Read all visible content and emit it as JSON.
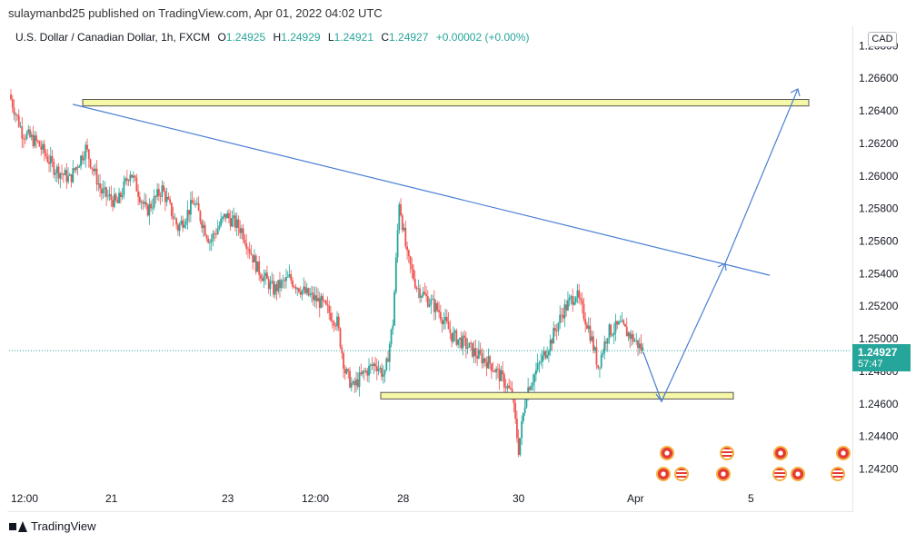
{
  "header": {
    "publisher_line": "sulaymanbd25 published on TradingView.com, Apr 01, 2022 04:02 UTC"
  },
  "legend": {
    "symbol": "U.S. Dollar / Canadian Dollar, 1h, FXCM",
    "open_label": "O",
    "open": "1.24925",
    "high_label": "H",
    "high": "1.24929",
    "low_label": "L",
    "low": "1.24921",
    "close_label": "C",
    "close": "1.24927",
    "change": "+0.00002 (+0.00%)"
  },
  "currency_badge": "CAD",
  "last_price": {
    "value": "1.24927",
    "countdown": "57:47"
  },
  "footer": {
    "brand": "TradingView"
  },
  "colors": {
    "up": "#26a69a",
    "down": "#ef5350",
    "drawing": "#4a7fd4",
    "zone_fill": "#f7f7a8",
    "zone_border": "#555555"
  },
  "chart_data": {
    "type": "candlestick",
    "title": "U.S. Dollar / Canadian Dollar, 1h, FXCM",
    "x_ticks": [
      "12:00",
      "21",
      "23",
      "12:00",
      "28",
      "30",
      "Apr",
      "5"
    ],
    "y_ticks": [
      "1.26800",
      "1.26600",
      "1.26400",
      "1.26200",
      "1.26000",
      "1.25800",
      "1.25600",
      "1.25400",
      "1.25200",
      "1.25000",
      "1.24800",
      "1.24600",
      "1.24400",
      "1.24200"
    ],
    "ylim": [
      1.2408,
      1.2688
    ],
    "grid": false,
    "path_points": [
      [
        0,
        1.265
      ],
      [
        8,
        1.2627
      ],
      [
        18,
        1.262
      ],
      [
        28,
        1.2605
      ],
      [
        38,
        1.2598
      ],
      [
        48,
        1.2617
      ],
      [
        58,
        1.259
      ],
      [
        68,
        1.2583
      ],
      [
        76,
        1.2603
      ],
      [
        86,
        1.2578
      ],
      [
        96,
        1.2592
      ],
      [
        106,
        1.2568
      ],
      [
        116,
        1.2584
      ],
      [
        126,
        1.256
      ],
      [
        136,
        1.2576
      ],
      [
        146,
        1.2567
      ],
      [
        156,
        1.2543
      ],
      [
        166,
        1.253
      ],
      [
        176,
        1.2537
      ],
      [
        186,
        1.2528
      ],
      [
        196,
        1.2522
      ],
      [
        206,
        1.251
      ],
      [
        211,
        1.248
      ],
      [
        216,
        1.247
      ],
      [
        222,
        1.2478
      ],
      [
        230,
        1.2485
      ],
      [
        236,
        1.2477
      ],
      [
        241,
        1.251
      ],
      [
        245,
        1.2585
      ],
      [
        250,
        1.255
      ],
      [
        256,
        1.2532
      ],
      [
        262,
        1.2525
      ],
      [
        270,
        1.2517
      ],
      [
        278,
        1.2502
      ],
      [
        286,
        1.2497
      ],
      [
        294,
        1.249
      ],
      [
        302,
        1.2485
      ],
      [
        310,
        1.2475
      ],
      [
        316,
        1.2465
      ],
      [
        320,
        1.2432
      ],
      [
        325,
        1.2468
      ],
      [
        332,
        1.2482
      ],
      [
        340,
        1.2498
      ],
      [
        348,
        1.2517
      ],
      [
        356,
        1.2528
      ],
      [
        364,
        1.2507
      ],
      [
        370,
        1.2483
      ],
      [
        376,
        1.2504
      ],
      [
        384,
        1.2508
      ],
      [
        392,
        1.25
      ],
      [
        398,
        1.2493
      ]
    ],
    "support_zone": [
      1.2463,
      1.2467
    ],
    "resistance_zone": [
      1.2643,
      1.2647
    ],
    "trendline": {
      "from": [
        "Mar 19",
        1.2644
      ],
      "to": [
        "Apr 05",
        1.2539
      ]
    },
    "last_price": 1.24927
  }
}
